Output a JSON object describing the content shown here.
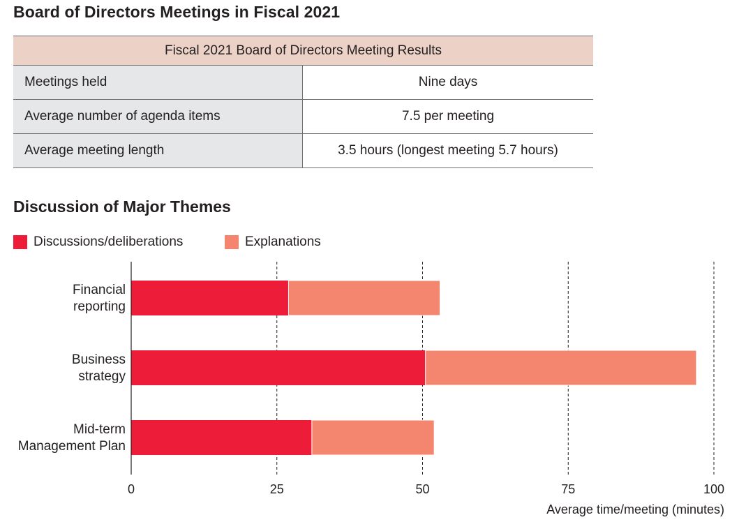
{
  "title": "Board of Directors Meetings in Fiscal 2021",
  "table": {
    "header": "Fiscal 2021 Board of Directors Meeting Results",
    "rows": [
      {
        "label": "Meetings held",
        "value": "Nine days"
      },
      {
        "label": "Average number of agenda items",
        "value": "7.5 per meeting"
      },
      {
        "label": "Average meeting length",
        "value": "3.5 hours (longest meeting 5.7 hours)"
      }
    ]
  },
  "chart_section_title": "Discussion of Major Themes",
  "colors": {
    "discussions": "#ed1c39",
    "explanations": "#f48670",
    "table_header_bg": "#ecd1c6",
    "table_label_bg": "#e6e7e8"
  },
  "chart_data": {
    "type": "bar",
    "orientation": "horizontal",
    "stacked": true,
    "categories": [
      [
        "Financial",
        "reporting"
      ],
      [
        "Business",
        "strategy"
      ],
      [
        "Mid-term",
        "Management Plan"
      ]
    ],
    "series": [
      {
        "name": "Discussions/deliberations",
        "values": [
          27,
          50.5,
          31
        ]
      },
      {
        "name": "Explanations",
        "values": [
          26,
          46.5,
          21
        ]
      }
    ],
    "xlabel": "Average time/meeting (minutes)",
    "xlim": [
      0,
      100
    ],
    "xticks": [
      0,
      25,
      50,
      75,
      100
    ],
    "grid": "vertical dashed",
    "legend": "top-left"
  }
}
